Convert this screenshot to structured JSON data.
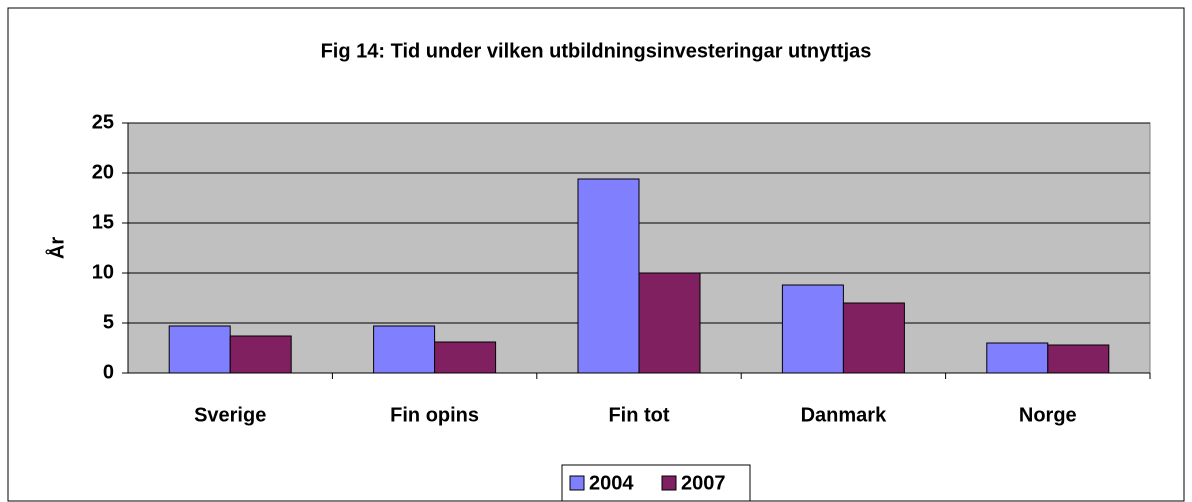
{
  "chart_data": {
    "type": "bar",
    "title": "Fig 14: Tid under vilken utbildningsinvesteringar utnyttjas",
    "y_label": "År",
    "categories": [
      "Sverige",
      "Fin opins",
      "Fin tot",
      "Danmark",
      "Norge"
    ],
    "series": [
      {
        "name": "2004",
        "color": "#8080ff",
        "values": [
          4.7,
          4.7,
          19.4,
          8.8,
          3.0
        ]
      },
      {
        "name": "2007",
        "color": "#802060",
        "values": [
          3.7,
          3.1,
          10.0,
          7.0,
          2.8
        ]
      }
    ],
    "ylim": [
      0,
      25
    ],
    "yticks": [
      0,
      5,
      10,
      15,
      20,
      25
    ],
    "grid": true,
    "legend": "bottom"
  }
}
